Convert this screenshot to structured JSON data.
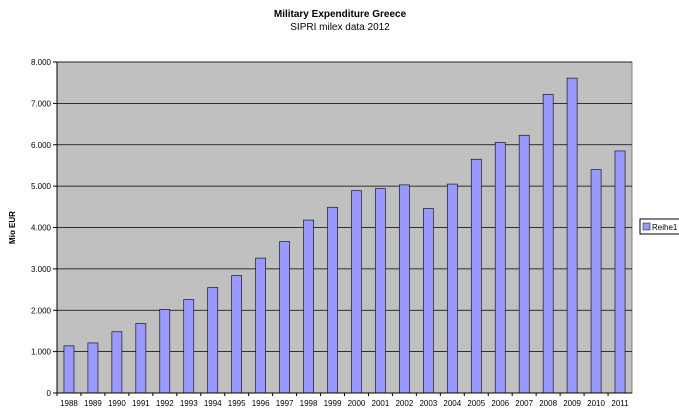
{
  "chart_data": {
    "type": "bar",
    "title": "Military Expenditure Greece",
    "subtitle": "SIPRI milex data 2012",
    "ylabel": "Mio EUR",
    "xlabel": "",
    "ylim": [
      0,
      8000
    ],
    "yticks": [
      0,
      1000,
      2000,
      3000,
      4000,
      5000,
      6000,
      7000,
      8000
    ],
    "ytick_labels": [
      "0",
      "1.000",
      "2.000",
      "3.000",
      "4.000",
      "5.000",
      "6.000",
      "7.000",
      "8.000"
    ],
    "grid": "horizontal",
    "legend_position": "right",
    "categories": [
      "1988",
      "1989",
      "1990",
      "1991",
      "1992",
      "1993",
      "1994",
      "1995",
      "1996",
      "1997",
      "1998",
      "1999",
      "2000",
      "2001",
      "2002",
      "2003",
      "2004",
      "2005",
      "2006",
      "2007",
      "2008",
      "2009",
      "2010",
      "2011"
    ],
    "series": [
      {
        "name": "Reihe1",
        "color": "#9999ff",
        "values": [
          1140,
          1210,
          1480,
          1680,
          2020,
          2260,
          2550,
          2840,
          3260,
          3660,
          4180,
          4490,
          4890,
          4940,
          5030,
          4460,
          5050,
          5650,
          6060,
          6230,
          7220,
          7610,
          5400,
          5850
        ]
      }
    ],
    "plot_background": "#c0c0c0"
  }
}
